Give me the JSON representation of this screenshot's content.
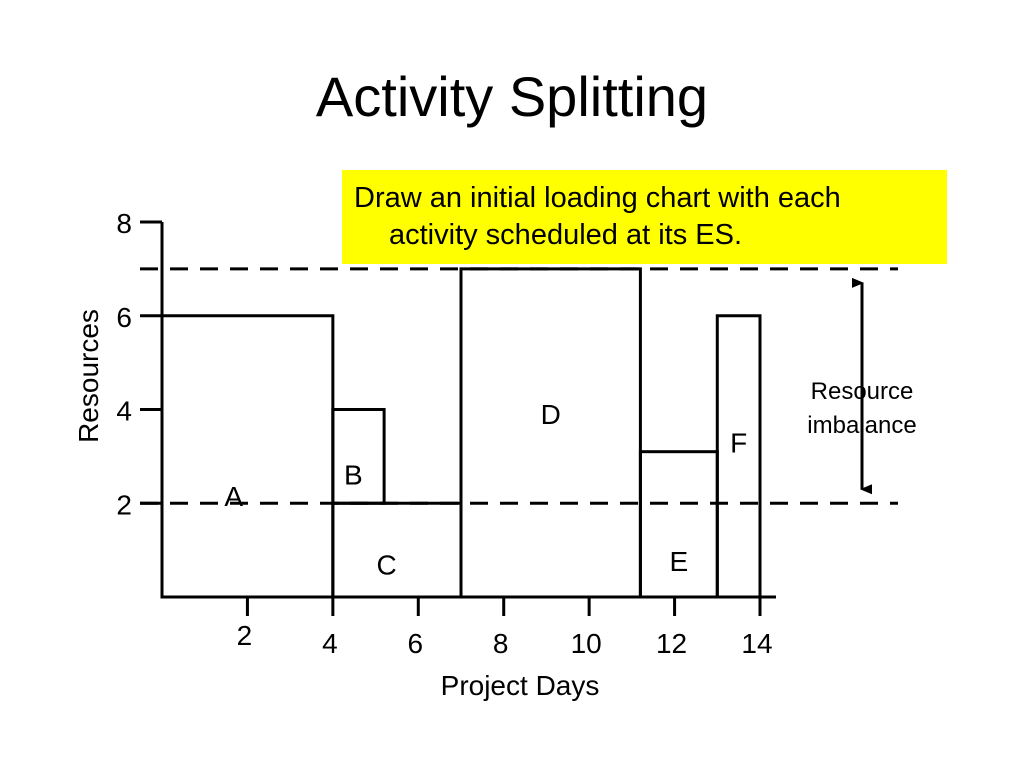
{
  "slide": {
    "title": "Activity Splitting",
    "callout_line1": "Draw an initial loading chart with each",
    "callout_line2": "activity scheduled at its ES.",
    "callout_color": "#ffff00"
  },
  "chart_data": {
    "type": "bar",
    "xlabel": "Project Days",
    "ylabel": "Resources",
    "xlim": [
      0,
      14
    ],
    "ylim": [
      0,
      8
    ],
    "x_ticks": [
      2,
      4,
      6,
      8,
      10,
      12,
      14
    ],
    "y_ticks": [
      2,
      4,
      6,
      8
    ],
    "activities": [
      {
        "name": "A",
        "start": 0,
        "end": 4,
        "bottom": 0,
        "top": 6
      },
      {
        "name": "B",
        "start": 4,
        "end": 5.2,
        "bottom": 2,
        "top": 4
      },
      {
        "name": "C",
        "start": 4,
        "end": 7,
        "bottom": 0,
        "top": 2
      },
      {
        "name": "D",
        "start": 7,
        "end": 11.2,
        "bottom": 0,
        "top": 7
      },
      {
        "name": "E",
        "start": 11.2,
        "end": 13,
        "bottom": 0,
        "top": 3.1
      },
      {
        "name": "F",
        "start": 13,
        "end": 14,
        "bottom": 0,
        "top": 6
      }
    ],
    "reference_lines": [
      7,
      2
    ],
    "annotation": {
      "line1": "Resource",
      "line2": "imbalance",
      "from": 2,
      "to": 7
    }
  }
}
